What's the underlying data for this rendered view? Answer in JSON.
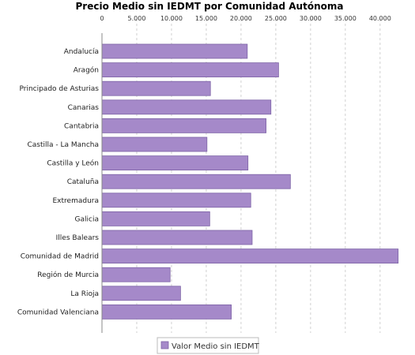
{
  "chart_data": {
    "type": "bar",
    "orientation": "horizontal",
    "title": "Precio Medio sin IEDMT por Comunidad Autónoma",
    "categories": [
      "Andalucía",
      "Aragón",
      "Principado de Asturias",
      "Canarias",
      "Cantabria",
      "Castilla - La Mancha",
      "Castilla y León",
      "Cataluña",
      "Extremadura",
      "Galicia",
      "Illes Balears",
      "Comunidad de Madrid",
      "Región de Murcia",
      "La Rioja",
      "Comunidad Valenciana"
    ],
    "series": [
      {
        "name": "Valor Medio sin IEDMT",
        "values": [
          20900,
          25400,
          15600,
          24300,
          23600,
          15100,
          21000,
          27100,
          21400,
          15500,
          21600,
          42600,
          9800,
          11300,
          18600
        ],
        "color": "#a589c9"
      }
    ],
    "xlim": [
      0,
      44000
    ],
    "xticks": [
      0,
      5000,
      10000,
      15000,
      20000,
      25000,
      30000,
      35000,
      40000
    ],
    "xtick_labels": [
      "0",
      "5.000",
      "10.000",
      "15.000",
      "20.000",
      "25.000",
      "30.000",
      "35.000",
      "40.000"
    ],
    "xlabel": "",
    "ylabel": "",
    "grid": "vertical dashed",
    "legend": "bottom"
  }
}
